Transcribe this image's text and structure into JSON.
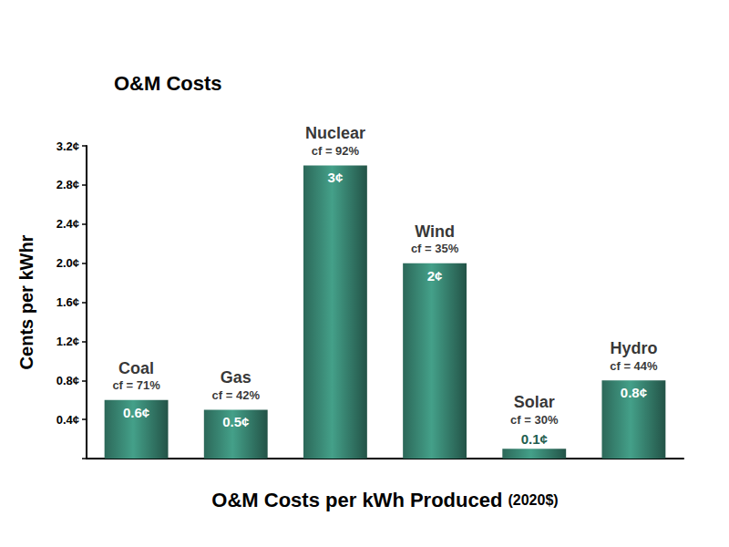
{
  "chart_data": {
    "type": "bar",
    "title": "O&M Costs",
    "x_label": "O&M Costs per kWh Produced (2020$)",
    "y_label": "Cents per kWhr",
    "categories": [
      "Coal",
      "Gas",
      "Nuclear",
      "Wind",
      "Solar",
      "Hydro"
    ],
    "annotations": [
      "cf = 71%",
      "cf = 42%",
      "cf = 92%",
      "cf = 35%",
      "cf = 30%",
      "cf = 44%"
    ],
    "values": [
      0.6,
      0.5,
      3,
      2,
      0.1,
      0.8
    ],
    "value_labels": [
      "0.6¢",
      "0.5¢",
      "3¢",
      "2¢",
      "0.1¢",
      "0.8¢"
    ],
    "data_labels": true,
    "color": "#3b8b77",
    "ylim": [
      0,
      3.2
    ],
    "yticks": [
      {
        "value": 0.4,
        "label": "0.4¢"
      },
      {
        "value": 0.8,
        "label": "0.8¢"
      },
      {
        "value": 1.2,
        "label": "1.2¢"
      },
      {
        "value": 1.6,
        "label": "1.6¢"
      },
      {
        "value": 2.0,
        "label": "2.0¢"
      },
      {
        "value": 2.4,
        "label": "2.4¢"
      },
      {
        "value": 2.8,
        "label": "2.8¢"
      },
      {
        "value": 3.2,
        "label": "3.2¢"
      }
    ],
    "grid": false,
    "tick_labels": "y"
  }
}
